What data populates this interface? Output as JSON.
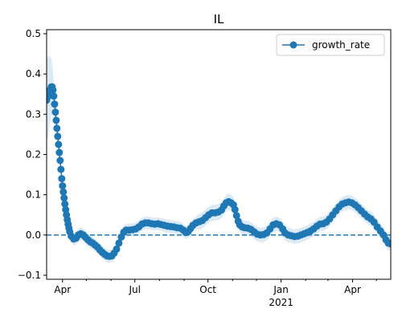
{
  "chart_data": {
    "type": "line",
    "title": "IL",
    "xlabel": "",
    "ylabel": "",
    "x_range": [
      "2020-03-12",
      "2021-05-19"
    ],
    "ylim": [
      -0.11,
      0.51
    ],
    "y_ticks": [
      -0.1,
      0.0,
      0.1,
      0.2,
      0.3,
      0.4,
      0.5
    ],
    "y_tick_labels": [
      "−0.1",
      "0.0",
      "0.1",
      "0.2",
      "0.3",
      "0.4",
      "0.5"
    ],
    "x_major_ticks": [
      {
        "date": "2020-04-01",
        "label": "Apr",
        "sublabel": ""
      },
      {
        "date": "2020-07-01",
        "label": "Jul",
        "sublabel": ""
      },
      {
        "date": "2020-10-01",
        "label": "Oct",
        "sublabel": ""
      },
      {
        "date": "2021-01-01",
        "label": "Jan",
        "sublabel": "2021"
      },
      {
        "date": "2021-04-01",
        "label": "Apr",
        "sublabel": ""
      }
    ],
    "x_minor_ticks": [
      "2020-05-01",
      "2020-06-01",
      "2020-08-01",
      "2020-09-01",
      "2020-11-01",
      "2020-12-01",
      "2021-02-01",
      "2021-03-01",
      "2021-05-01"
    ],
    "reference_line": {
      "y": 0.0,
      "style": "dashed"
    },
    "grid": false,
    "legend_position": "upper right",
    "colors": {
      "series": "#1f77b4",
      "band": "#d6e6f5",
      "axis": "#000000"
    },
    "series": [
      {
        "name": "growth_rate",
        "marker": "circle",
        "points": [
          [
            "2020-03-12",
            0.335
          ],
          [
            "2020-03-14",
            0.345
          ],
          [
            "2020-03-16",
            0.36
          ],
          [
            "2020-03-18",
            0.368
          ],
          [
            "2020-03-19",
            0.368
          ],
          [
            "2020-03-20",
            0.36
          ],
          [
            "2020-03-21",
            0.345
          ],
          [
            "2020-03-22",
            0.325
          ],
          [
            "2020-03-23",
            0.305
          ],
          [
            "2020-03-24",
            0.285
          ],
          [
            "2020-03-25",
            0.265
          ],
          [
            "2020-03-26",
            0.245
          ],
          [
            "2020-03-27",
            0.225
          ],
          [
            "2020-03-28",
            0.205
          ],
          [
            "2020-03-29",
            0.185
          ],
          [
            "2020-03-30",
            0.163
          ],
          [
            "2020-03-31",
            0.14
          ],
          [
            "2020-04-01",
            0.122
          ],
          [
            "2020-04-02",
            0.107
          ],
          [
            "2020-04-03",
            0.092
          ],
          [
            "2020-04-04",
            0.077
          ],
          [
            "2020-04-05",
            0.063
          ],
          [
            "2020-04-06",
            0.05
          ],
          [
            "2020-04-07",
            0.038
          ],
          [
            "2020-04-08",
            0.027
          ],
          [
            "2020-04-09",
            0.017
          ],
          [
            "2020-04-10",
            0.008
          ],
          [
            "2020-04-12",
            -0.003
          ],
          [
            "2020-04-15",
            -0.01
          ],
          [
            "2020-04-18",
            -0.008
          ],
          [
            "2020-04-21",
            0.0
          ],
          [
            "2020-04-24",
            0.003
          ],
          [
            "2020-04-27",
            0.0
          ],
          [
            "2020-04-30",
            -0.006
          ],
          [
            "2020-05-03",
            -0.012
          ],
          [
            "2020-05-06",
            -0.017
          ],
          [
            "2020-05-09",
            -0.02
          ],
          [
            "2020-05-12",
            -0.025
          ],
          [
            "2020-05-15",
            -0.03
          ],
          [
            "2020-05-18",
            -0.037
          ],
          [
            "2020-05-21",
            -0.043
          ],
          [
            "2020-05-24",
            -0.048
          ],
          [
            "2020-05-27",
            -0.052
          ],
          [
            "2020-05-30",
            -0.053
          ],
          [
            "2020-06-02",
            -0.052
          ],
          [
            "2020-06-05",
            -0.045
          ],
          [
            "2020-06-08",
            -0.035
          ],
          [
            "2020-06-11",
            -0.02
          ],
          [
            "2020-06-14",
            -0.005
          ],
          [
            "2020-06-17",
            0.007
          ],
          [
            "2020-06-20",
            0.012
          ],
          [
            "2020-06-24",
            0.012
          ],
          [
            "2020-06-28",
            0.013
          ],
          [
            "2020-07-02",
            0.015
          ],
          [
            "2020-07-06",
            0.02
          ],
          [
            "2020-07-10",
            0.027
          ],
          [
            "2020-07-14",
            0.03
          ],
          [
            "2020-07-18",
            0.03
          ],
          [
            "2020-07-22",
            0.028
          ],
          [
            "2020-07-26",
            0.027
          ],
          [
            "2020-07-30",
            0.028
          ],
          [
            "2020-08-03",
            0.026
          ],
          [
            "2020-08-07",
            0.024
          ],
          [
            "2020-08-11",
            0.022
          ],
          [
            "2020-08-15",
            0.021
          ],
          [
            "2020-08-19",
            0.02
          ],
          [
            "2020-08-23",
            0.018
          ],
          [
            "2020-08-27",
            0.017
          ],
          [
            "2020-08-31",
            0.012
          ],
          [
            "2020-09-03",
            0.006
          ],
          [
            "2020-09-06",
            0.008
          ],
          [
            "2020-09-09",
            0.016
          ],
          [
            "2020-09-12",
            0.024
          ],
          [
            "2020-09-16",
            0.03
          ],
          [
            "2020-09-20",
            0.033
          ],
          [
            "2020-09-24",
            0.036
          ],
          [
            "2020-09-28",
            0.043
          ],
          [
            "2020-10-02",
            0.05
          ],
          [
            "2020-10-06",
            0.055
          ],
          [
            "2020-10-10",
            0.055
          ],
          [
            "2020-10-14",
            0.057
          ],
          [
            "2020-10-18",
            0.062
          ],
          [
            "2020-10-21",
            0.072
          ],
          [
            "2020-10-24",
            0.08
          ],
          [
            "2020-10-27",
            0.083
          ],
          [
            "2020-10-30",
            0.08
          ],
          [
            "2020-11-02",
            0.075
          ],
          [
            "2020-11-04",
            0.063
          ],
          [
            "2020-11-06",
            0.048
          ],
          [
            "2020-11-08",
            0.034
          ],
          [
            "2020-11-10",
            0.025
          ],
          [
            "2020-11-13",
            0.02
          ],
          [
            "2020-11-16",
            0.018
          ],
          [
            "2020-11-20",
            0.017
          ],
          [
            "2020-11-24",
            0.014
          ],
          [
            "2020-11-28",
            0.008
          ],
          [
            "2020-12-02",
            0.002
          ],
          [
            "2020-12-06",
            0.0
          ],
          [
            "2020-12-10",
            0.001
          ],
          [
            "2020-12-14",
            0.005
          ],
          [
            "2020-12-18",
            0.015
          ],
          [
            "2020-12-22",
            0.025
          ],
          [
            "2020-12-26",
            0.028
          ],
          [
            "2020-12-30",
            0.025
          ],
          [
            "2021-01-03",
            0.015
          ],
          [
            "2021-01-06",
            0.005
          ],
          [
            "2021-01-10",
            0.0
          ],
          [
            "2021-01-14",
            -0.002
          ],
          [
            "2021-01-18",
            -0.004
          ],
          [
            "2021-01-22",
            -0.003
          ],
          [
            "2021-01-26",
            0.0
          ],
          [
            "2021-01-30",
            0.003
          ],
          [
            "2021-02-03",
            0.006
          ],
          [
            "2021-02-07",
            0.01
          ],
          [
            "2021-02-11",
            0.015
          ],
          [
            "2021-02-15",
            0.022
          ],
          [
            "2021-02-19",
            0.027
          ],
          [
            "2021-02-23",
            0.028
          ],
          [
            "2021-02-27",
            0.032
          ],
          [
            "2021-03-03",
            0.04
          ],
          [
            "2021-03-07",
            0.05
          ],
          [
            "2021-03-11",
            0.06
          ],
          [
            "2021-03-15",
            0.07
          ],
          [
            "2021-03-19",
            0.077
          ],
          [
            "2021-03-23",
            0.08
          ],
          [
            "2021-03-27",
            0.082
          ],
          [
            "2021-03-31",
            0.08
          ],
          [
            "2021-04-04",
            0.075
          ],
          [
            "2021-04-08",
            0.068
          ],
          [
            "2021-04-12",
            0.06
          ],
          [
            "2021-04-16",
            0.052
          ],
          [
            "2021-04-20",
            0.045
          ],
          [
            "2021-04-24",
            0.04
          ],
          [
            "2021-04-28",
            0.032
          ],
          [
            "2021-05-02",
            0.02
          ],
          [
            "2021-05-06",
            0.01
          ],
          [
            "2021-05-10",
            0.0
          ],
          [
            "2021-05-13",
            -0.012
          ],
          [
            "2021-05-16",
            -0.02
          ],
          [
            "2021-05-19",
            -0.022
          ]
        ],
        "band_halfwidth": [
          0.1,
          0.1,
          0.085,
          0.07,
          0.055,
          0.045,
          0.04,
          0.035,
          0.03,
          0.028,
          0.025,
          0.022,
          0.02,
          0.02,
          0.018,
          0.017,
          0.016,
          0.015,
          0.015,
          0.015,
          0.015,
          0.015,
          0.015,
          0.015,
          0.015,
          0.015,
          0.015,
          0.016,
          0.016,
          0.016,
          0.016,
          0.016,
          0.016,
          0.016,
          0.016,
          0.016,
          0.016,
          0.016,
          0.016,
          0.016,
          0.016,
          0.016,
          0.016,
          0.016,
          0.016,
          0.016,
          0.016,
          0.016,
          0.016,
          0.016,
          0.016,
          0.016,
          0.016,
          0.016,
          0.016,
          0.016,
          0.016,
          0.016,
          0.016,
          0.016,
          0.016,
          0.016,
          0.016,
          0.016,
          0.016,
          0.016,
          0.016,
          0.016,
          0.016,
          0.016,
          0.016,
          0.016,
          0.016,
          0.016,
          0.02,
          0.02,
          0.02,
          0.02,
          0.02,
          0.02,
          0.02,
          0.02,
          0.02,
          0.02,
          0.02,
          0.02,
          0.02,
          0.02,
          0.018,
          0.018,
          0.018,
          0.018,
          0.018,
          0.018,
          0.018,
          0.018,
          0.018,
          0.018,
          0.018,
          0.018,
          0.018,
          0.018,
          0.018,
          0.018,
          0.018,
          0.018,
          0.018,
          0.018,
          0.018,
          0.018,
          0.018,
          0.018,
          0.018,
          0.018,
          0.018,
          0.018,
          0.018,
          0.018,
          0.018,
          0.018,
          0.018,
          0.018,
          0.018,
          0.018,
          0.018,
          0.018,
          0.018,
          0.018,
          0.018,
          0.018,
          0.018,
          0.018,
          0.018,
          0.018,
          0.018,
          0.018,
          0.018,
          0.018,
          0.018,
          0.018,
          0.025,
          0.025,
          0.025,
          0.025
        ]
      }
    ]
  }
}
